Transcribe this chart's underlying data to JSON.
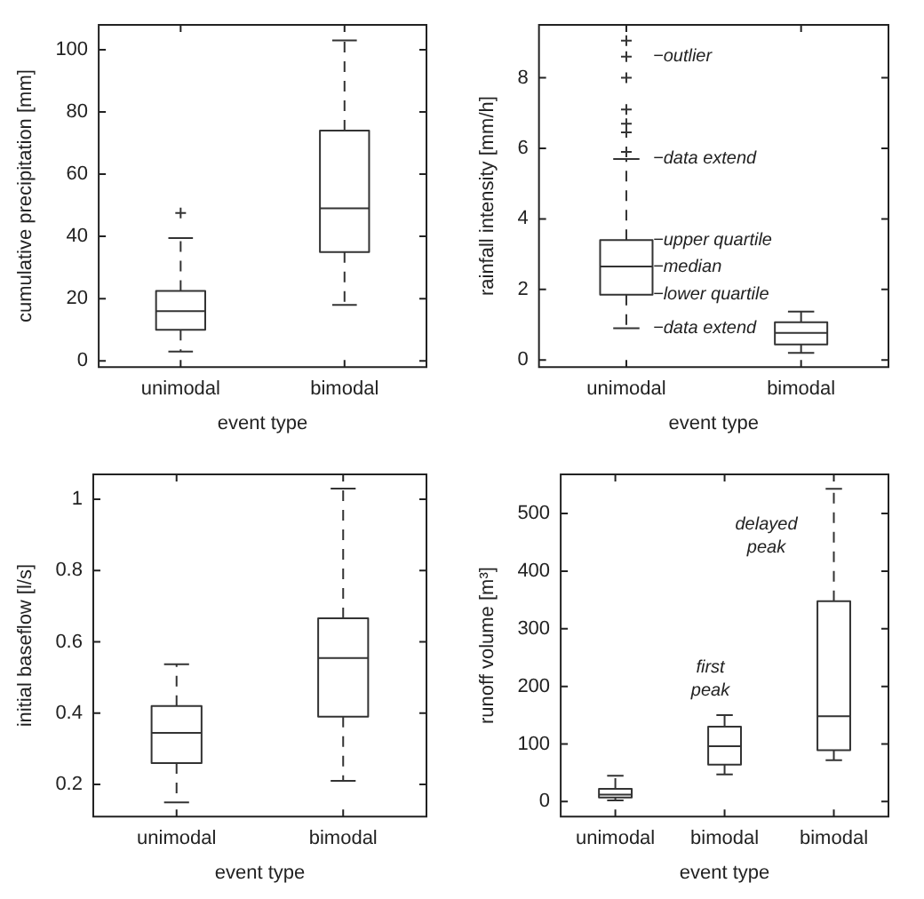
{
  "chart_data": [
    {
      "type": "box",
      "xlabel": "event type",
      "ylabel": "cumulative precipitation [mm]",
      "categories": [
        "unimodal",
        "bimodal"
      ],
      "ylim": [
        -2,
        108
      ],
      "yticks": [
        0,
        20,
        40,
        60,
        80,
        100
      ],
      "grid": false,
      "color": "#333333",
      "boxes": [
        {
          "low": 3,
          "q1": 10,
          "median": 16,
          "q3": 22.5,
          "high": 39.5,
          "outliers": [
            47.5
          ]
        },
        {
          "low": 18,
          "q1": 35,
          "median": 49,
          "q3": 74,
          "high": 103
        }
      ]
    },
    {
      "type": "box",
      "xlabel": "event type",
      "ylabel": "rainfall intensity [mm/h]",
      "categories": [
        "unimodal",
        "bimodal"
      ],
      "ylim": [
        -0.2,
        9.5
      ],
      "yticks": [
        0,
        2,
        4,
        6,
        8
      ],
      "grid": false,
      "color": "#333333",
      "boxes": [
        {
          "low": 0.9,
          "q1": 1.85,
          "median": 2.65,
          "q3": 3.4,
          "high": 5.7,
          "outliers": [
            5.9,
            6.45,
            6.7,
            7.1,
            8.0,
            8.6,
            9.05
          ]
        },
        {
          "low": 0.2,
          "q1": 0.44,
          "median": 0.77,
          "q3": 1.07,
          "high": 1.37
        }
      ],
      "annotations": [
        "−outlier",
        {
          "text": "−data extend",
          "x": "unimodal",
          "y": 5.7
        },
        {
          "text": "−upper quartile",
          "x": "unimodal",
          "y": 3.4
        },
        {
          "text": "−median",
          "x": "unimodal",
          "y": 2.65
        },
        {
          "text": "−lower quartile",
          "x": "unimodal",
          "y": 1.85
        },
        {
          "text": "−data extend",
          "x": "unimodal",
          "y": 0.9
        }
      ]
    },
    {
      "type": "box",
      "xlabel": "event type",
      "ylabel": "initial baseflow [l/s]",
      "categories": [
        "unimodal",
        "bimodal"
      ],
      "ylim": [
        0.11,
        1.07
      ],
      "yticks": [
        0.2,
        0.4,
        0.6,
        0.8,
        1
      ],
      "grid": false,
      "color": "#333333",
      "boxes": [
        {
          "low": 0.15,
          "q1": 0.26,
          "median": 0.345,
          "q3": 0.42,
          "high": 0.537
        },
        {
          "low": 0.21,
          "q1": 0.39,
          "median": 0.555,
          "q3": 0.666,
          "high": 1.03
        }
      ]
    },
    {
      "type": "box",
      "xlabel": "event type",
      "ylabel": "runoff volume [m³]",
      "categories": [
        "unimodal",
        "bimodal",
        "bimodal"
      ],
      "ylim": [
        -26,
        568
      ],
      "yticks": [
        0,
        100,
        200,
        300,
        400,
        500
      ],
      "grid": false,
      "color": "#333333",
      "boxes": [
        {
          "low": 2,
          "q1": 7,
          "median": 12,
          "q3": 22,
          "high": 45
        },
        {
          "low": 47,
          "q1": 64,
          "median": 96,
          "q3": 130,
          "high": 150
        },
        {
          "low": 72,
          "q1": 89,
          "median": 148,
          "q3": 348,
          "high": 543
        }
      ],
      "annotations": [
        "first peak",
        "delayed peak"
      ]
    }
  ]
}
